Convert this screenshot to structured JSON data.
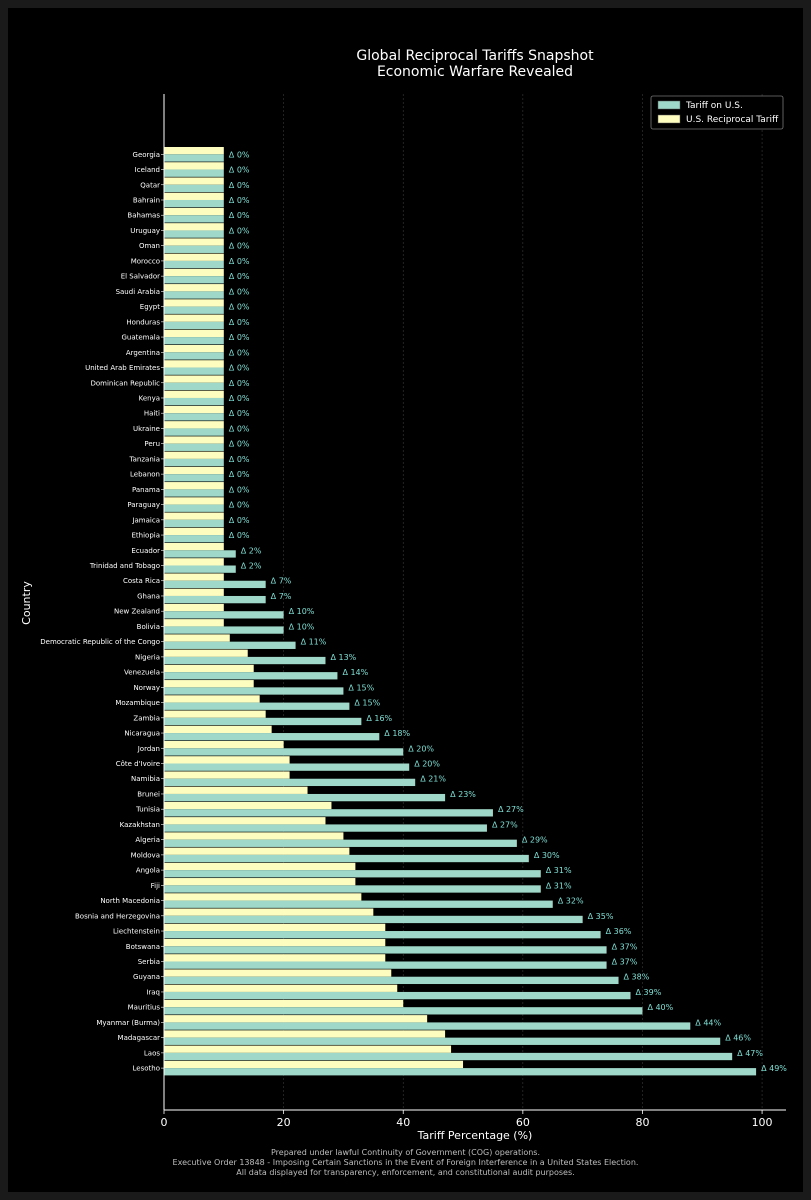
{
  "chart_data": {
    "type": "bar",
    "orientation": "horizontal",
    "title": "Global Reciprocal Tariffs Snapshot",
    "subtitle": "Economic Warfare Revealed",
    "xlabel": "Tariff Percentage (%)",
    "ylabel": "Country",
    "xlim": [
      0,
      104
    ],
    "xticks": [
      "0",
      "20",
      "40",
      "60",
      "80",
      "100"
    ],
    "grid": true,
    "legend_position": "top-right",
    "delta_prefix": "Δ ",
    "categories": [
      "Georgia",
      "Iceland",
      "Qatar",
      "Bahrain",
      "Bahamas",
      "Uruguay",
      "Oman",
      "Morocco",
      "El Salvador",
      "Saudi Arabia",
      "Egypt",
      "Honduras",
      "Guatemala",
      "Argentina",
      "United Arab Emirates",
      "Dominican Republic",
      "Kenya",
      "Haiti",
      "Ukraine",
      "Peru",
      "Tanzania",
      "Lebanon",
      "Panama",
      "Paraguay",
      "Jamaica",
      "Ethiopia",
      "Ecuador",
      "Trinidad and Tobago",
      "Costa Rica",
      "Ghana",
      "New Zealand",
      "Bolivia",
      "Democratic Republic of the Congo",
      "Nigeria",
      "Venezuela",
      "Norway",
      "Mozambique",
      "Zambia",
      "Nicaragua",
      "Jordan",
      "Côte d'Ivoire",
      "Namibia",
      "Brunei",
      "Tunisia",
      "Kazakhstan",
      "Algeria",
      "Moldova",
      "Angola",
      "Fiji",
      "North Macedonia",
      "Bosnia and Herzegovina",
      "Liechtenstein",
      "Botswana",
      "Serbia",
      "Guyana",
      "Iraq",
      "Mauritius",
      "Myanmar (Burma)",
      "Madagascar",
      "Laos",
      "Lesotho"
    ],
    "series": [
      {
        "name": "Tariff on U.S.",
        "color": "#9fd8c8",
        "values": [
          10,
          10,
          10,
          10,
          10,
          10,
          10,
          10,
          10,
          10,
          10,
          10,
          10,
          10,
          10,
          10,
          10,
          10,
          10,
          10,
          10,
          10,
          10,
          10,
          10,
          10,
          12,
          12,
          17,
          17,
          20,
          20,
          22,
          27,
          29,
          30,
          31,
          33,
          36,
          40,
          41,
          42,
          47,
          55,
          54,
          59,
          61,
          63,
          63,
          65,
          70,
          73,
          74,
          74,
          76,
          78,
          80,
          88,
          93,
          95,
          99
        ]
      },
      {
        "name": "U.S. Reciprocal Tariff",
        "color": "#fdfdbf",
        "values": [
          10,
          10,
          10,
          10,
          10,
          10,
          10,
          10,
          10,
          10,
          10,
          10,
          10,
          10,
          10,
          10,
          10,
          10,
          10,
          10,
          10,
          10,
          10,
          10,
          10,
          10,
          10,
          10,
          10,
          10,
          10,
          10,
          11,
          14,
          15,
          15,
          16,
          17,
          18,
          20,
          21,
          21,
          24,
          28,
          27,
          30,
          31,
          32,
          32,
          33,
          35,
          37,
          37,
          37,
          38,
          39,
          40,
          44,
          47,
          48,
          50
        ]
      }
    ],
    "deltas": [
      "0%",
      "0%",
      "0%",
      "0%",
      "0%",
      "0%",
      "0%",
      "0%",
      "0%",
      "0%",
      "0%",
      "0%",
      "0%",
      "0%",
      "0%",
      "0%",
      "0%",
      "0%",
      "0%",
      "0%",
      "0%",
      "0%",
      "0%",
      "0%",
      "0%",
      "0%",
      "2%",
      "2%",
      "7%",
      "7%",
      "10%",
      "10%",
      "11%",
      "13%",
      "14%",
      "15%",
      "15%",
      "16%",
      "18%",
      "20%",
      "20%",
      "21%",
      "23%",
      "27%",
      "27%",
      "29%",
      "30%",
      "31%",
      "31%",
      "32%",
      "35%",
      "36%",
      "37%",
      "37%",
      "38%",
      "39%",
      "40%",
      "44%",
      "46%",
      "47%",
      "49%"
    ]
  },
  "colors": {
    "background": "#000000",
    "frame": "#1a1a1a",
    "text": "#ffffff",
    "delta": "#7fe0d6",
    "grid": "#3a3a3a"
  },
  "footer": {
    "line1": "Prepared under lawful Continuity of Government (COG) operations.",
    "line2": "Executive Order 13848 - Imposing Certain Sanctions in the Event of Foreign Interference in a United States Election.",
    "line3": "All data displayed for transparency, enforcement, and constitutional audit purposes."
  }
}
